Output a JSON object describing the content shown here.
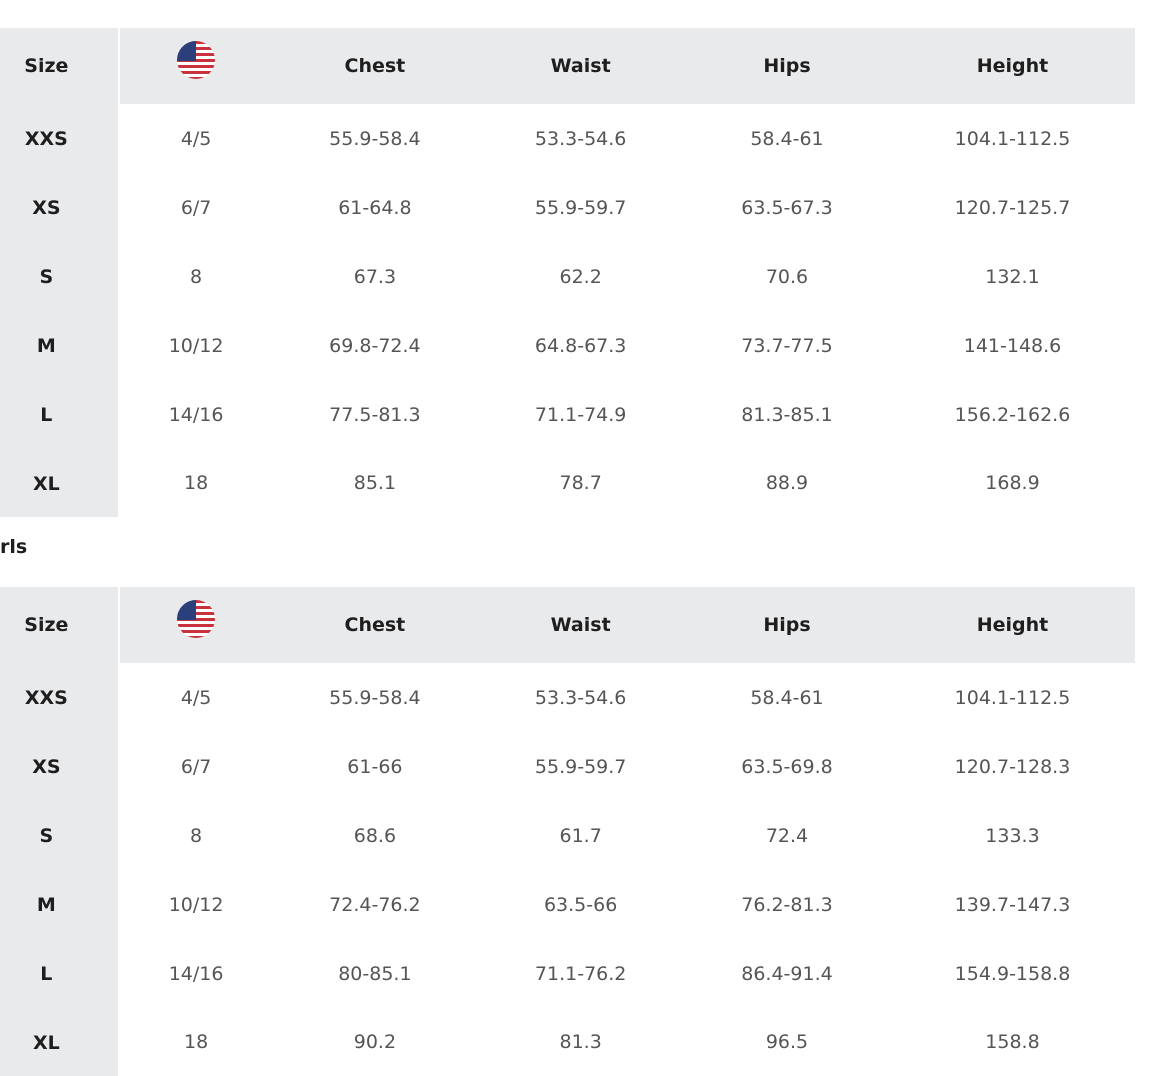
{
  "columns": [
    "Size",
    "",
    "Chest",
    "Waist",
    "Hips",
    "Height"
  ],
  "flag_icon": "us-flag-icon",
  "colors": {
    "header_bg": "#e9eaec",
    "flag_red": "#c8323c",
    "flag_blue": "#2b3f7a"
  },
  "table1": {
    "rows": [
      [
        "XXS",
        "4/5",
        "55.9-58.4",
        "53.3-54.6",
        "58.4-61",
        "104.1-112.5"
      ],
      [
        "XS",
        "6/7",
        "61-64.8",
        "55.9-59.7",
        "63.5-67.3",
        "120.7-125.7"
      ],
      [
        "S",
        "8",
        "67.3",
        "62.2",
        "70.6",
        "132.1"
      ],
      [
        "M",
        "10/12",
        "69.8-72.4",
        "64.8-67.3",
        "73.7-77.5",
        "141-148.6"
      ],
      [
        "L",
        "14/16",
        "77.5-81.3",
        "71.1-74.9",
        "81.3-85.1",
        "156.2-162.6"
      ],
      [
        "XL",
        "18",
        "85.1",
        "78.7",
        "88.9",
        "168.9"
      ]
    ]
  },
  "table2": {
    "title": "rls",
    "rows": [
      [
        "XXS",
        "4/5",
        "55.9-58.4",
        "53.3-54.6",
        "58.4-61",
        "104.1-112.5"
      ],
      [
        "XS",
        "6/7",
        "61-66",
        "55.9-59.7",
        "63.5-69.8",
        "120.7-128.3"
      ],
      [
        "S",
        "8",
        "68.6",
        "61.7",
        "72.4",
        "133.3"
      ],
      [
        "M",
        "10/12",
        "72.4-76.2",
        "63.5-66",
        "76.2-81.3",
        "139.7-147.3"
      ],
      [
        "L",
        "14/16",
        "80-85.1",
        "71.1-76.2",
        "86.4-91.4",
        "154.9-158.8"
      ],
      [
        "XL",
        "18",
        "90.2",
        "81.3",
        "96.5",
        "158.8"
      ]
    ]
  }
}
